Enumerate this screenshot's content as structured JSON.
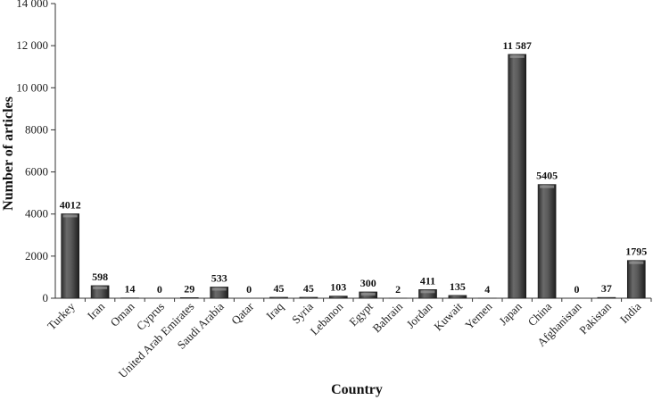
{
  "chart_data": {
    "type": "bar",
    "title": "",
    "xlabel": "Country",
    "ylabel": "Number of articles",
    "ylim": [
      0,
      14000
    ],
    "yticks": [
      0,
      2000,
      4000,
      6000,
      8000,
      10000,
      12000,
      14000
    ],
    "ytick_labels": [
      "0",
      "2000",
      "4000",
      "6000",
      "8000",
      "10 000",
      "12 000",
      "14 000"
    ],
    "grid": false,
    "categories": [
      "Turkey",
      "Iran",
      "Oman",
      "Cyprus",
      "United Arab Emirates",
      "Saudi Arabia",
      "Qatar",
      "Iraq",
      "Syria",
      "Lebanon",
      "Egypt",
      "Bahrain",
      "Jordan",
      "Kuwait",
      "Yemen",
      "Japan",
      "China",
      "Afghanistan",
      "Pakistan",
      "India"
    ],
    "values": [
      4012,
      598,
      14,
      0,
      29,
      533,
      0,
      45,
      45,
      103,
      300,
      2,
      411,
      135,
      4,
      11587,
      5405,
      0,
      37,
      1795
    ],
    "value_labels": [
      "4012",
      "598",
      "14",
      "0",
      "29",
      "533",
      "0",
      "45",
      "45",
      "103",
      "300",
      "2",
      "411",
      "135",
      "4",
      "11 587",
      "5405",
      "0",
      "37",
      "1795"
    ],
    "bar_color": "#4a4a4a"
  }
}
